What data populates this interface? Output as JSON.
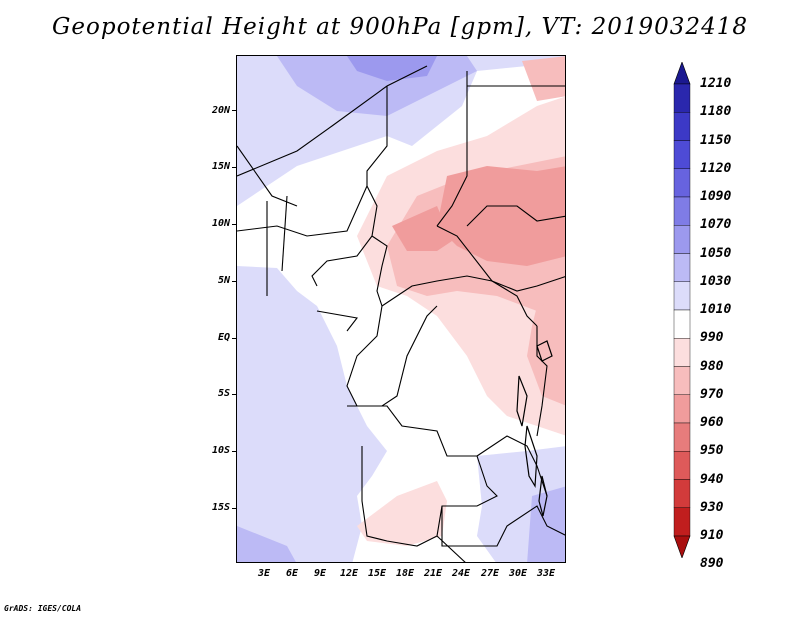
{
  "title": "Geopotential Height at 900hPa [gpm], VT: 2019032418",
  "footer": "GrADS: IGES/COLA",
  "lat_labels": [
    "20N",
    "15N",
    "10N",
    "5N",
    "EQ",
    "5S",
    "10S",
    "15S"
  ],
  "lon_labels": [
    "3E",
    "6E",
    "9E",
    "12E",
    "15E",
    "18E",
    "21E",
    "24E",
    "27E",
    "30E",
    "33E"
  ],
  "colorbar": {
    "levels": [
      "1210",
      "1180",
      "1150",
      "1120",
      "1090",
      "1070",
      "1050",
      "1030",
      "1010",
      "990",
      "980",
      "970",
      "960",
      "950",
      "940",
      "930",
      "910",
      "890"
    ],
    "colors": [
      "#1b1990",
      "#2a27ad",
      "#3c39c6",
      "#4e4bd6",
      "#6763df",
      "#7f7ce6",
      "#9c99ee",
      "#bcbaf5",
      "#dcdcfa",
      "#ffffff",
      "#fcdede",
      "#f7bdbd",
      "#f09c9c",
      "#e77c7c",
      "#de5a5a",
      "#d23b3b",
      "#c01e1e",
      "#a90f0f"
    ]
  }
}
